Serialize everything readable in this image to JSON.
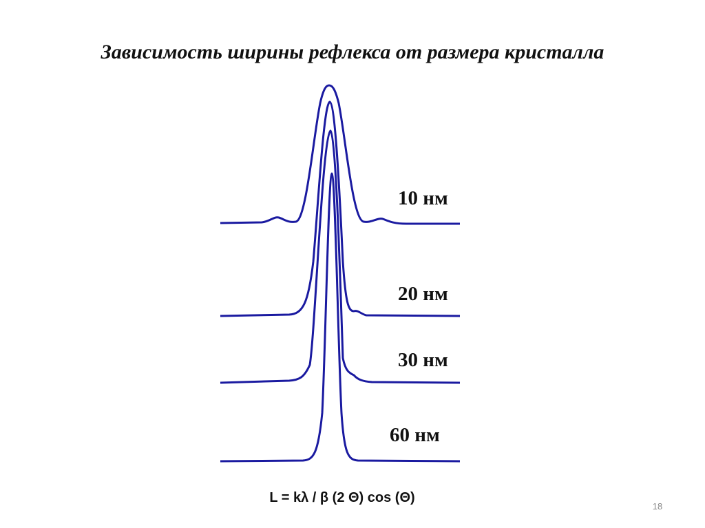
{
  "title": "Зависимость ширины рефлекса от размера кристалла",
  "curves": [
    {
      "label": "10 нм"
    },
    {
      "label": "20 нм"
    },
    {
      "label": "30 нм"
    },
    {
      "label": "60 нм"
    }
  ],
  "formula": "L = kλ / β (2 Θ) cos (Θ)",
  "page_number": 18
}
